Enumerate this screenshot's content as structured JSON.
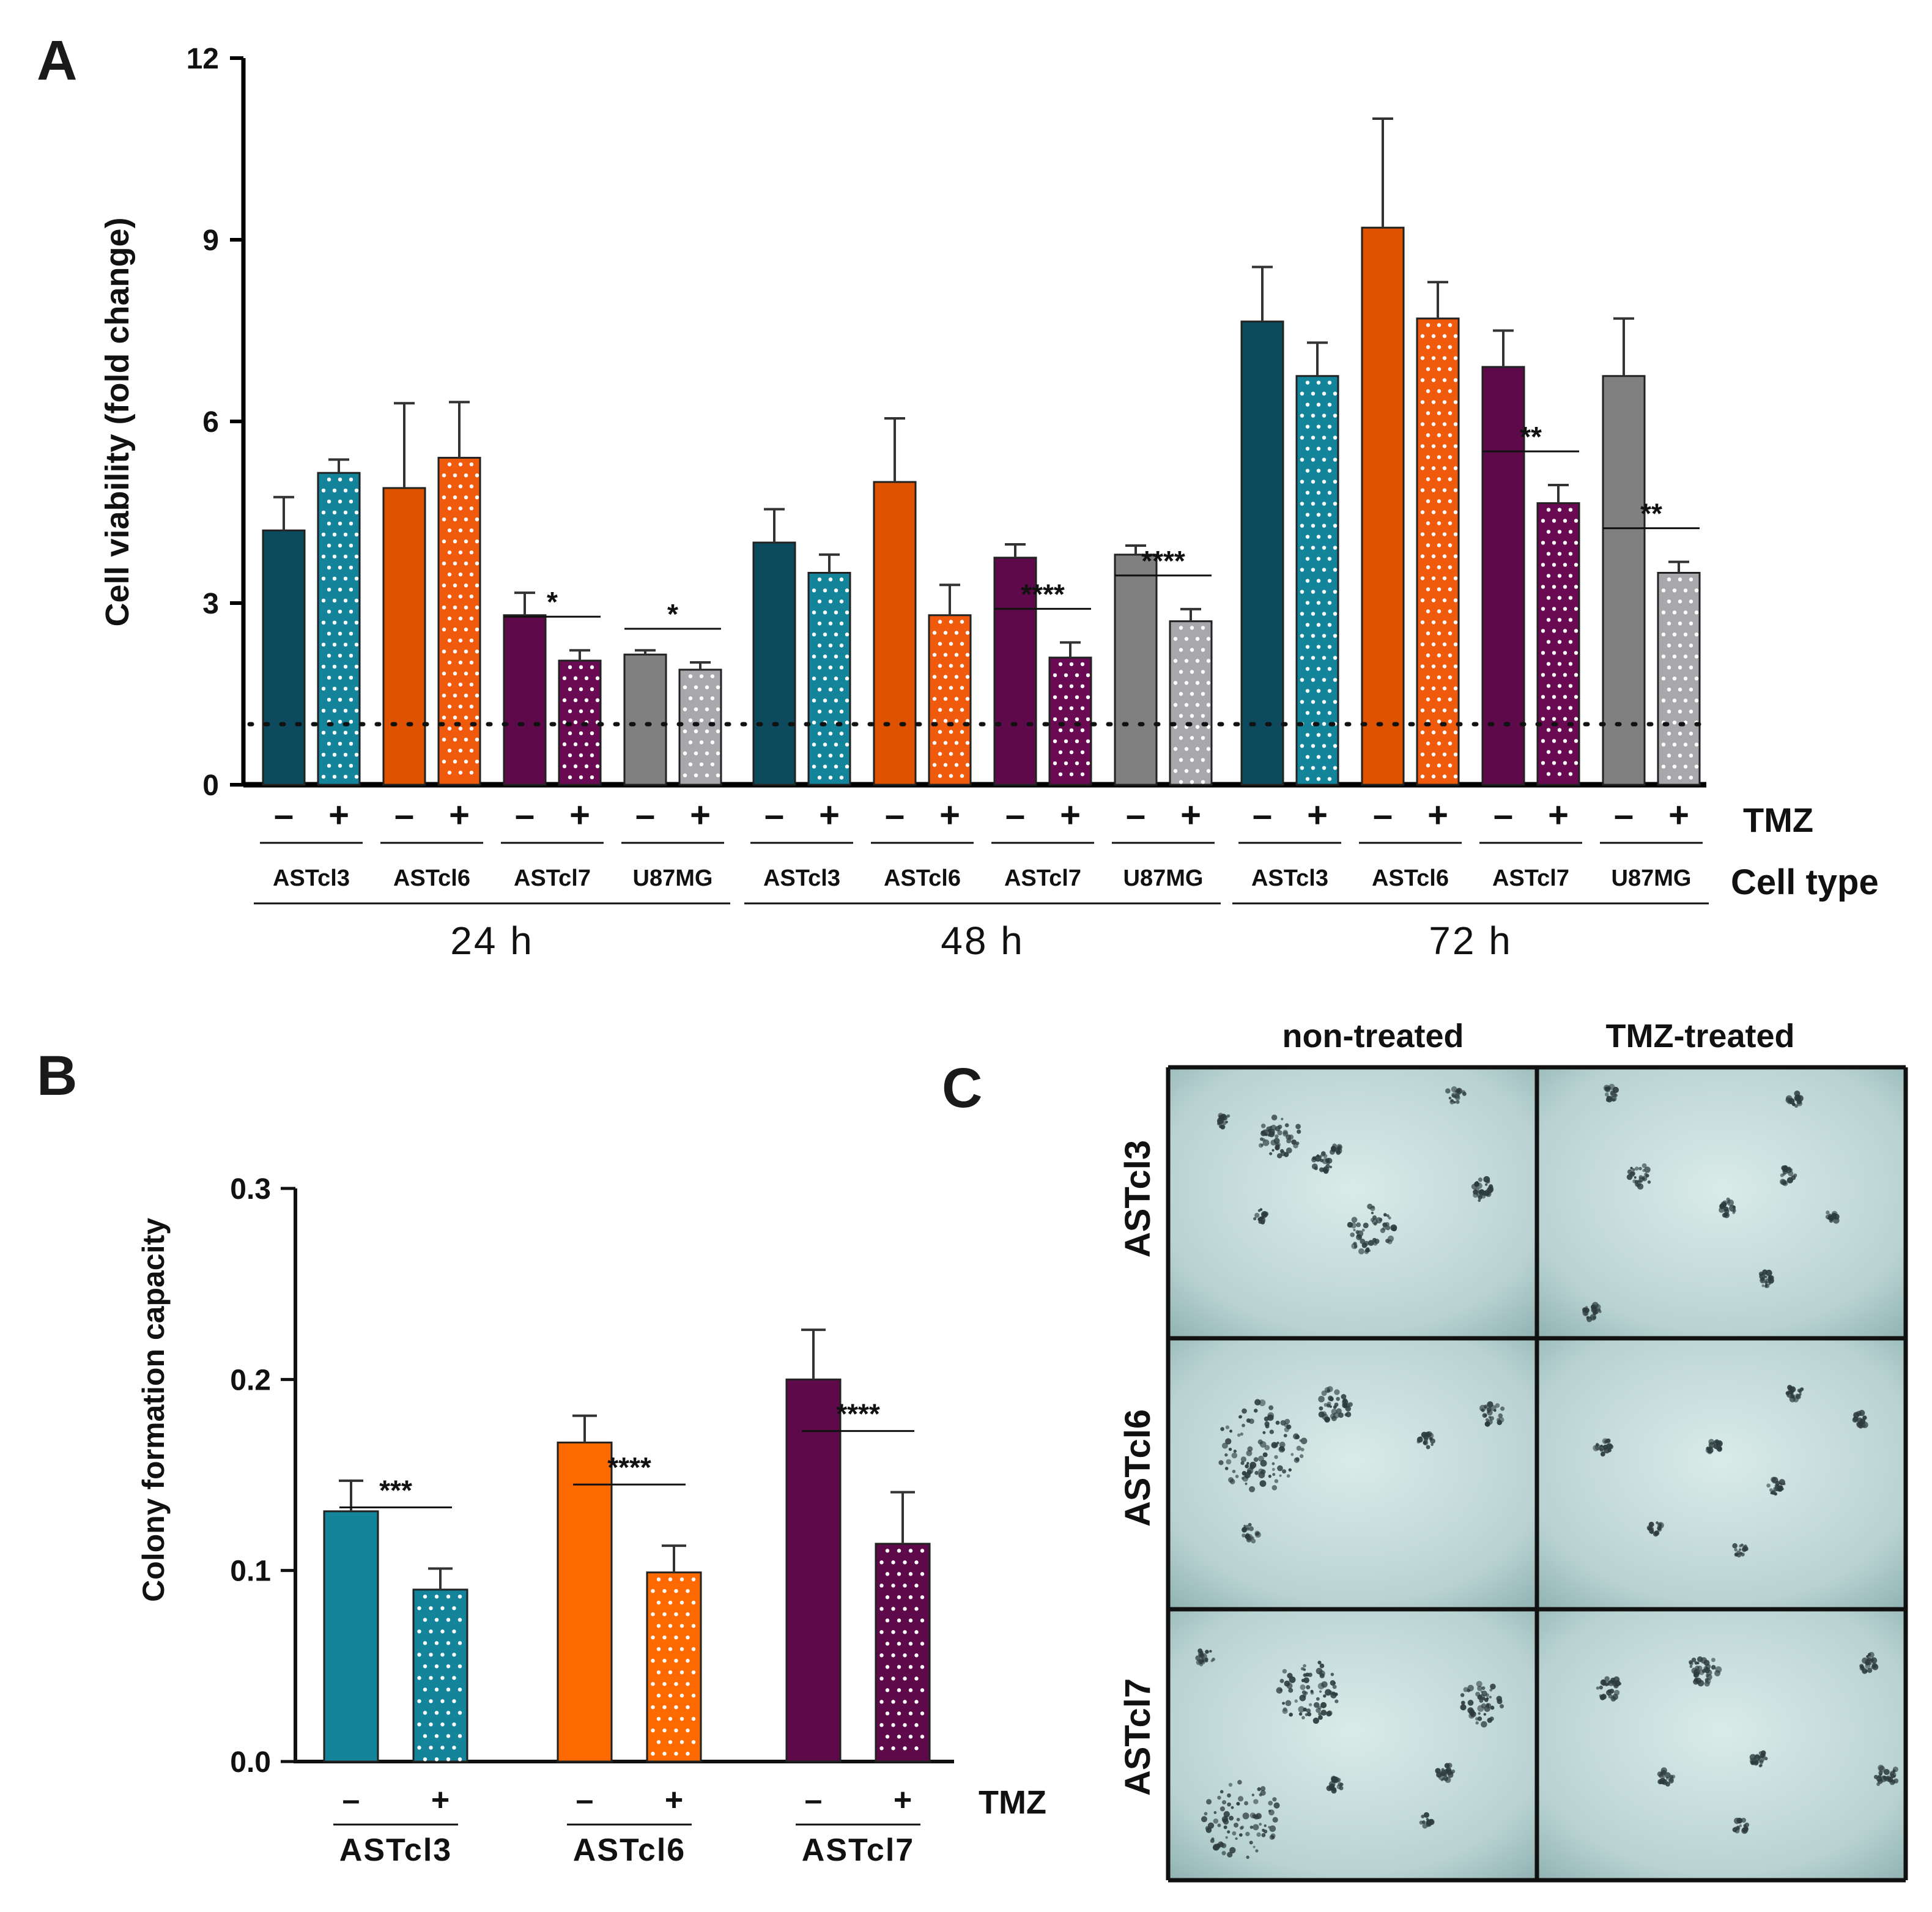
{
  "panels": {
    "A": "A",
    "B": "B",
    "C": "C"
  },
  "colors": {
    "ASTcl3": "#0c4a5e",
    "ASTcl3_light": "#13849a",
    "ASTcl6": "#df5200",
    "ASTcl6_light": "#ff6a00",
    "ASTcl7": "#5e0a4a",
    "U87MG": "#808080",
    "U87MG_treated": "#a8a8ac"
  },
  "chart_data": [
    {
      "type": "bar",
      "panel": "A",
      "ylabel": "Cell viability (fold change)",
      "ylim": [
        0,
        12
      ],
      "yticks": [
        "0",
        "3",
        "6",
        "9",
        "12"
      ],
      "reference_line": 1,
      "treatment_label": "TMZ",
      "treatment_signs": [
        "–",
        "+"
      ],
      "cell_type_label": "Cell type",
      "groups": [
        {
          "time": "24 h",
          "cells": [
            {
              "name": "ASTcl3",
              "color": "#0c4a5e",
              "treated_color": "#13849a",
              "values": [
                4.2,
                5.15
              ],
              "errors": [
                0.55,
                0.22
              ],
              "sig": null
            },
            {
              "name": "ASTcl6",
              "color": "#df5200",
              "treated_color": "#ef5a0c",
              "values": [
                4.9,
                5.4
              ],
              "errors": [
                1.4,
                0.92
              ],
              "sig": null
            },
            {
              "name": "ASTcl7",
              "color": "#5e0a4a",
              "treated_color": "#6a0a52",
              "values": [
                2.8,
                2.05
              ],
              "errors": [
                0.37,
                0.17
              ],
              "sig": "*"
            },
            {
              "name": "U87MG",
              "color": "#808080",
              "treated_color": "#a8a8ac",
              "values": [
                2.15,
                1.9
              ],
              "errors": [
                0.07,
                0.12
              ],
              "sig": "*"
            }
          ]
        },
        {
          "time": "48 h",
          "cells": [
            {
              "name": "ASTcl3",
              "color": "#0c4a5e",
              "treated_color": "#13849a",
              "values": [
                4.0,
                3.5
              ],
              "errors": [
                0.55,
                0.3
              ],
              "sig": null
            },
            {
              "name": "ASTcl6",
              "color": "#df5200",
              "treated_color": "#ef5a0c",
              "values": [
                5.0,
                2.8
              ],
              "errors": [
                1.05,
                0.5
              ],
              "sig": null
            },
            {
              "name": "ASTcl7",
              "color": "#5e0a4a",
              "treated_color": "#6a0a52",
              "values": [
                3.75,
                2.1
              ],
              "errors": [
                0.22,
                0.25
              ],
              "sig": "****"
            },
            {
              "name": "U87MG",
              "color": "#808080",
              "treated_color": "#a8a8ac",
              "values": [
                3.8,
                2.7
              ],
              "errors": [
                0.15,
                0.2
              ],
              "sig": "****"
            }
          ]
        },
        {
          "time": "72 h",
          "cells": [
            {
              "name": "ASTcl3",
              "color": "#0c4a5e",
              "treated_color": "#13849a",
              "values": [
                7.65,
                6.75
              ],
              "errors": [
                0.9,
                0.55
              ],
              "sig": null
            },
            {
              "name": "ASTcl6",
              "color": "#df5200",
              "treated_color": "#ef5a0c",
              "values": [
                9.2,
                7.7
              ],
              "errors": [
                1.8,
                0.6
              ],
              "sig": null
            },
            {
              "name": "ASTcl7",
              "color": "#5e0a4a",
              "treated_color": "#6a0a52",
              "values": [
                6.9,
                4.65
              ],
              "errors": [
                0.6,
                0.3
              ],
              "sig": "**"
            },
            {
              "name": "U87MG",
              "color": "#808080",
              "treated_color": "#a8a8ac",
              "values": [
                6.75,
                3.5
              ],
              "errors": [
                0.95,
                0.18
              ],
              "sig": "**"
            }
          ]
        }
      ]
    },
    {
      "type": "bar",
      "panel": "B",
      "ylabel": "Colony formation capacity",
      "ylim": [
        0,
        0.3
      ],
      "yticks": [
        "0.0",
        "0.1",
        "0.2",
        "0.3"
      ],
      "treatment_label": "TMZ",
      "treatment_signs": [
        "–",
        "+"
      ],
      "cells": [
        {
          "name": "ASTcl3",
          "color": "#13849a",
          "values": [
            0.131,
            0.09
          ],
          "errors": [
            0.016,
            0.011
          ],
          "sig": "***"
        },
        {
          "name": "ASTcl6",
          "color": "#ff6a00",
          "values": [
            0.167,
            0.099
          ],
          "errors": [
            0.014,
            0.014
          ],
          "sig": "****"
        },
        {
          "name": "ASTcl7",
          "color": "#5e0a4a",
          "values": [
            0.2,
            0.114
          ],
          "errors": [
            0.026,
            0.027
          ],
          "sig": "****"
        }
      ]
    }
  ],
  "micrographs": {
    "columns": [
      "non-treated",
      "TMZ-treated"
    ],
    "rows": [
      "ASTcl3",
      "ASTcl6",
      "ASTcl7"
    ]
  }
}
